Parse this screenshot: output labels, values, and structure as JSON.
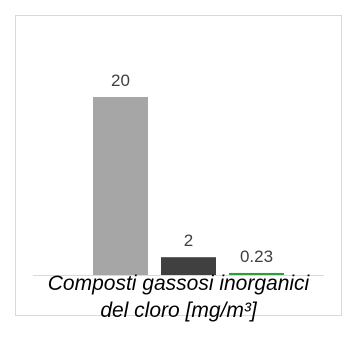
{
  "chart_data": {
    "type": "bar",
    "categories": [
      "",
      "",
      ""
    ],
    "values": [
      20,
      2,
      0.23
    ],
    "data_labels": [
      "20",
      "2",
      "0.23"
    ],
    "colors": [
      "#a6a6a6",
      "#404040",
      "#2e9e3c"
    ],
    "ylim": [
      0,
      20
    ],
    "grid": false,
    "legend": "none",
    "caption_line1": "Composti gassosi inorganici",
    "caption_line2": "del cloro [mg/m³]"
  }
}
